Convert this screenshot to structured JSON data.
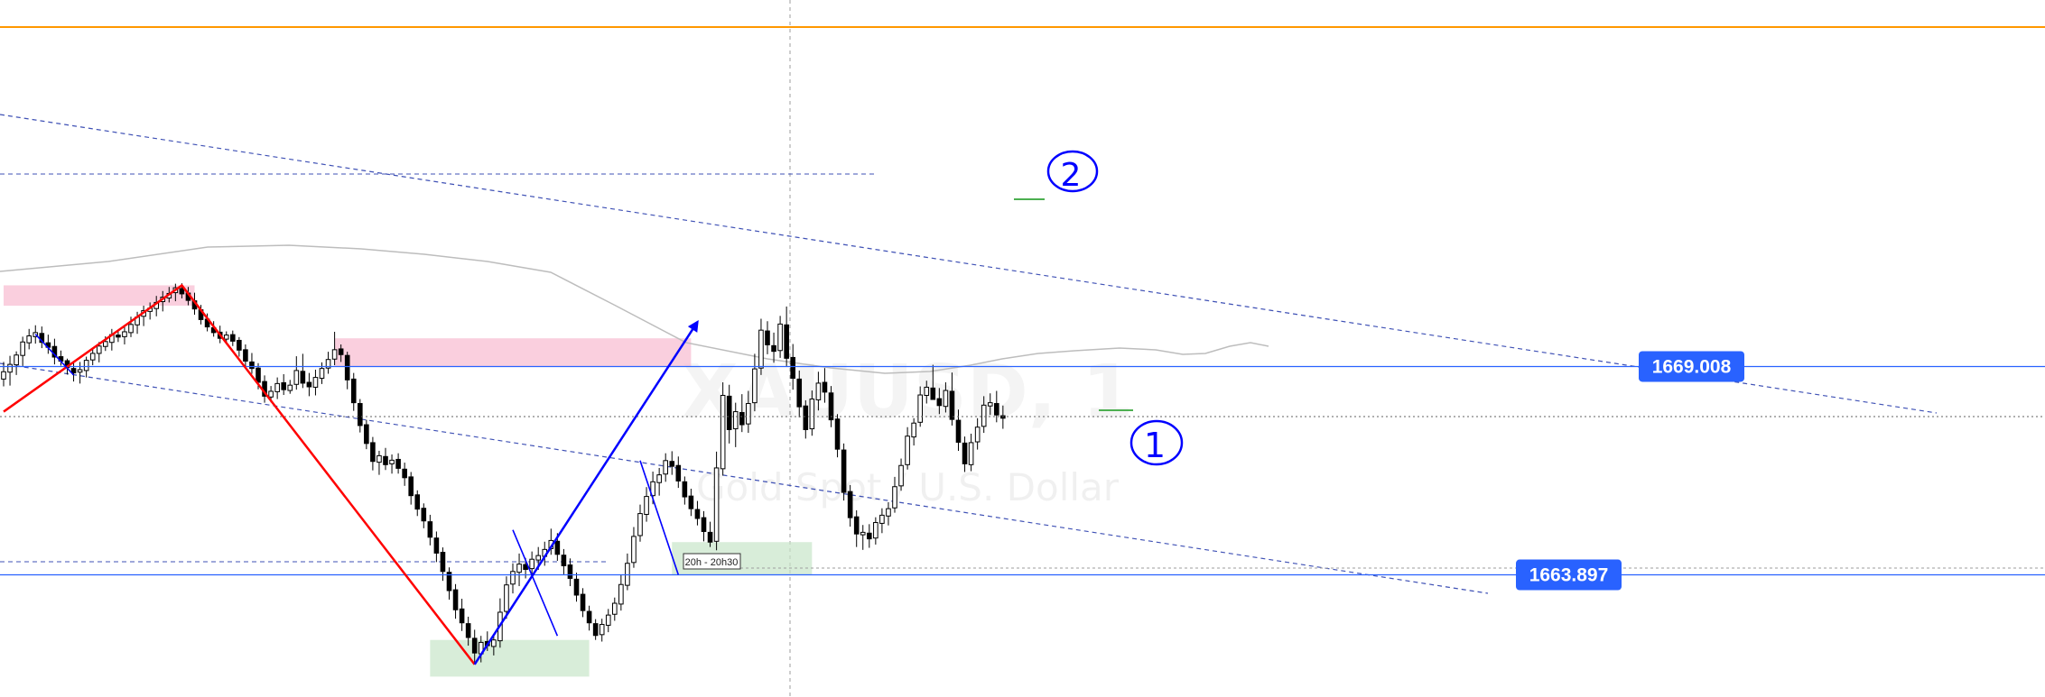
{
  "chart_data": {
    "type": "candlestick",
    "watermark": {
      "symbol": "XAUUSD, 1",
      "description": "Gold Spot / U.S. Dollar"
    },
    "y_range": [
      1660.9,
      1678.0
    ],
    "bar_count": 210,
    "horizontal_levels": [
      {
        "price": 1669.008,
        "label": "1669.008",
        "color": "#2962ff"
      },
      {
        "price": 1663.897,
        "label": "1663.897",
        "color": "#2962ff"
      }
    ],
    "current_price": 1667.78,
    "annotations": [
      {
        "type": "handwritten-label",
        "text": "2",
        "bar": 117,
        "price": 1671.3
      },
      {
        "type": "handwritten-label",
        "text": "1",
        "bar": 123,
        "price": 1663.9
      },
      {
        "type": "time-tag",
        "text": "20h - 20h30",
        "bar": 74,
        "price": 1661.8
      }
    ],
    "zones": [
      {
        "color": "#f8bbd0",
        "from_bar": 0,
        "to_bar": 30,
        "from_price": 1671.0,
        "to_price": 1670.5
      },
      {
        "color": "#f8bbd0",
        "from_bar": 52,
        "to_bar": 108,
        "from_price": 1669.7,
        "to_price": 1669.0
      },
      {
        "color": "#c8e6c9",
        "from_bar": 67,
        "to_bar": 92,
        "from_price": 1662.3,
        "to_price": 1661.4
      },
      {
        "color": "#c8e6c9",
        "from_bar": 105,
        "to_bar": 127,
        "from_price": 1664.7,
        "to_price": 1663.9
      }
    ],
    "trend_lines": [
      {
        "color": "#ff0000",
        "points": [
          [
            0,
            1667.9
          ],
          [
            28,
            1671.0
          ],
          [
            74,
            1661.7
          ]
        ]
      },
      {
        "color": "#0000ff",
        "points": [
          [
            74,
            1661.7
          ],
          [
            109,
            1670.1
          ]
        ],
        "arrow": true
      },
      {
        "color": "#0000ff",
        "points": [
          [
            5,
            1669.8
          ],
          [
            11,
            1668.8
          ]
        ]
      },
      {
        "color": "#0000ff",
        "points": [
          [
            80,
            1665.0
          ],
          [
            87,
            1662.4
          ]
        ]
      },
      {
        "color": "#0000ff",
        "points": [
          [
            100,
            1666.7
          ],
          [
            106,
            1663.9
          ]
        ]
      }
    ],
    "candles": [
      [
        1668.7,
        1669.12,
        1668.52,
        1668.88
      ],
      [
        1668.87,
        1669.27,
        1668.54,
        1669.06
      ],
      [
        1669.05,
        1669.38,
        1668.8,
        1669.29
      ],
      [
        1669.28,
        1669.74,
        1669.02,
        1669.61
      ],
      [
        1669.59,
        1669.93,
        1669.43,
        1669.76
      ],
      [
        1669.74,
        1670.02,
        1669.57,
        1669.84
      ],
      [
        1669.82,
        1669.99,
        1669.46,
        1669.6
      ],
      [
        1669.59,
        1669.79,
        1669.32,
        1669.48
      ],
      [
        1669.5,
        1669.69,
        1669.06,
        1669.24
      ],
      [
        1669.25,
        1669.4,
        1669.03,
        1669.14
      ],
      [
        1669.15,
        1669.2,
        1668.81,
        1668.98
      ],
      [
        1668.96,
        1669.1,
        1668.64,
        1668.85
      ],
      [
        1668.87,
        1669.12,
        1668.59,
        1668.93
      ],
      [
        1668.91,
        1669.25,
        1668.74,
        1669.16
      ],
      [
        1669.17,
        1669.47,
        1669.04,
        1669.33
      ],
      [
        1669.33,
        1669.61,
        1669.11,
        1669.51
      ],
      [
        1669.5,
        1669.75,
        1669.39,
        1669.62
      ],
      [
        1669.6,
        1669.93,
        1669.4,
        1669.79
      ],
      [
        1669.78,
        1669.89,
        1669.61,
        1669.73
      ],
      [
        1669.74,
        1669.98,
        1669.55,
        1669.86
      ],
      [
        1669.84,
        1670.23,
        1669.73,
        1670.04
      ],
      [
        1670.03,
        1670.35,
        1669.81,
        1670.22
      ],
      [
        1670.24,
        1670.5,
        1670.0,
        1670.38
      ],
      [
        1670.36,
        1670.58,
        1670.16,
        1670.44
      ],
      [
        1670.43,
        1670.74,
        1670.24,
        1670.58
      ],
      [
        1670.6,
        1670.86,
        1670.36,
        1670.71
      ],
      [
        1670.69,
        1670.96,
        1670.58,
        1670.8
      ],
      [
        1670.82,
        1671.04,
        1670.61,
        1670.94
      ],
      [
        1670.92,
        1671.05,
        1670.68,
        1670.79
      ],
      [
        1670.81,
        1670.96,
        1670.51,
        1670.63
      ],
      [
        1670.62,
        1670.82,
        1670.28,
        1670.42
      ],
      [
        1670.4,
        1670.52,
        1670.04,
        1670.16
      ],
      [
        1670.17,
        1670.31,
        1669.87,
        1669.98
      ],
      [
        1669.96,
        1670.12,
        1669.74,
        1669.84
      ],
      [
        1669.85,
        1670.01,
        1669.58,
        1669.7
      ],
      [
        1669.68,
        1669.87,
        1669.55,
        1669.78
      ],
      [
        1669.79,
        1669.89,
        1669.51,
        1669.63
      ],
      [
        1669.65,
        1669.73,
        1669.25,
        1669.41
      ],
      [
        1669.42,
        1669.55,
        1668.98,
        1669.14
      ],
      [
        1669.12,
        1669.34,
        1668.83,
        1668.96
      ],
      [
        1668.97,
        1669.09,
        1668.45,
        1668.62
      ],
      [
        1668.64,
        1668.79,
        1668.12,
        1668.28
      ],
      [
        1668.26,
        1668.53,
        1668.13,
        1668.4
      ],
      [
        1668.39,
        1668.74,
        1668.21,
        1668.59
      ],
      [
        1668.61,
        1668.82,
        1668.31,
        1668.44
      ],
      [
        1668.42,
        1668.68,
        1668.34,
        1668.55
      ],
      [
        1668.57,
        1669.26,
        1668.44,
        1668.91
      ],
      [
        1668.89,
        1669.32,
        1668.48,
        1668.6
      ],
      [
        1668.62,
        1668.85,
        1668.28,
        1668.51
      ],
      [
        1668.5,
        1668.93,
        1668.3,
        1668.74
      ],
      [
        1668.72,
        1669.11,
        1668.58,
        1668.96
      ],
      [
        1668.97,
        1669.37,
        1668.83,
        1669.18
      ],
      [
        1669.19,
        1669.86,
        1669.04,
        1669.42
      ],
      [
        1669.44,
        1669.55,
        1669.12,
        1669.3
      ],
      [
        1669.28,
        1669.37,
        1668.45,
        1668.68
      ],
      [
        1668.7,
        1668.85,
        1667.92,
        1668.12
      ],
      [
        1668.1,
        1668.21,
        1667.39,
        1667.56
      ],
      [
        1667.58,
        1667.7,
        1666.98,
        1667.12
      ],
      [
        1667.14,
        1667.28,
        1666.46,
        1666.68
      ],
      [
        1666.66,
        1666.94,
        1666.35,
        1666.82
      ],
      [
        1666.8,
        1667.01,
        1666.47,
        1666.6
      ],
      [
        1666.62,
        1666.85,
        1666.38,
        1666.71
      ],
      [
        1666.73,
        1666.88,
        1666.38,
        1666.51
      ],
      [
        1666.49,
        1666.65,
        1666.08,
        1666.28
      ],
      [
        1666.3,
        1666.42,
        1665.62,
        1665.84
      ],
      [
        1665.86,
        1665.97,
        1665.34,
        1665.51
      ],
      [
        1665.53,
        1665.65,
        1665.04,
        1665.22
      ],
      [
        1665.2,
        1665.37,
        1664.62,
        1664.82
      ],
      [
        1664.8,
        1664.96,
        1664.21,
        1664.43
      ],
      [
        1664.45,
        1664.57,
        1663.75,
        1663.98
      ],
      [
        1663.96,
        1664.08,
        1663.29,
        1663.51
      ],
      [
        1663.53,
        1663.67,
        1662.82,
        1663.04
      ],
      [
        1663.06,
        1663.31,
        1662.52,
        1662.72
      ],
      [
        1662.7,
        1662.87,
        1662.16,
        1662.36
      ],
      [
        1662.34,
        1662.55,
        1661.73,
        1661.98
      ],
      [
        1661.96,
        1662.4,
        1661.75,
        1662.24
      ],
      [
        1662.26,
        1662.51,
        1662.03,
        1662.16
      ],
      [
        1662.14,
        1662.43,
        1661.92,
        1662.3
      ],
      [
        1662.28,
        1663.32,
        1662.11,
        1662.98
      ],
      [
        1663.0,
        1663.86,
        1662.82,
        1663.65
      ],
      [
        1663.67,
        1664.18,
        1663.44,
        1663.98
      ],
      [
        1663.96,
        1664.42,
        1663.62,
        1664.16
      ],
      [
        1664.15,
        1664.31,
        1663.81,
        1664.03
      ],
      [
        1664.05,
        1664.47,
        1663.88,
        1664.28
      ],
      [
        1664.26,
        1664.58,
        1664.02,
        1664.37
      ],
      [
        1664.35,
        1664.71,
        1664.12,
        1664.52
      ],
      [
        1664.54,
        1665.03,
        1664.39,
        1664.74
      ],
      [
        1664.72,
        1664.92,
        1664.24,
        1664.4
      ],
      [
        1664.38,
        1664.53,
        1663.91,
        1664.12
      ],
      [
        1664.14,
        1664.3,
        1663.62,
        1663.81
      ],
      [
        1663.79,
        1663.95,
        1663.24,
        1663.4
      ],
      [
        1663.42,
        1663.57,
        1662.86,
        1663.02
      ],
      [
        1663.0,
        1663.14,
        1662.53,
        1662.72
      ],
      [
        1662.7,
        1662.81,
        1662.3,
        1662.41
      ],
      [
        1662.43,
        1662.82,
        1662.26,
        1662.68
      ],
      [
        1662.66,
        1663.06,
        1662.49,
        1662.91
      ],
      [
        1662.93,
        1663.34,
        1662.77,
        1663.2
      ],
      [
        1663.18,
        1663.89,
        1663.02,
        1663.66
      ],
      [
        1663.64,
        1664.42,
        1663.52,
        1664.18
      ],
      [
        1664.2,
        1665.07,
        1664.07,
        1664.84
      ],
      [
        1664.86,
        1665.62,
        1664.71,
        1665.4
      ],
      [
        1665.38,
        1666.05,
        1665.2,
        1665.82
      ],
      [
        1665.84,
        1666.43,
        1665.63,
        1666.18
      ],
      [
        1666.16,
        1666.52,
        1665.84,
        1666.35
      ],
      [
        1666.37,
        1666.88,
        1666.18,
        1666.7
      ],
      [
        1666.68,
        1666.93,
        1666.35,
        1666.56
      ],
      [
        1666.58,
        1666.8,
        1666.03,
        1666.2
      ],
      [
        1666.18,
        1666.31,
        1665.62,
        1665.81
      ],
      [
        1665.83,
        1666.01,
        1665.34,
        1665.52
      ],
      [
        1665.5,
        1665.71,
        1665.11,
        1665.28
      ],
      [
        1665.3,
        1665.46,
        1664.72,
        1664.96
      ],
      [
        1664.94,
        1665.2,
        1664.58,
        1664.7
      ],
      [
        1664.72,
        1666.92,
        1664.5,
        1666.52
      ],
      [
        1666.5,
        1668.62,
        1666.33,
        1668.3
      ],
      [
        1668.28,
        1668.56,
        1667.12,
        1667.46
      ],
      [
        1667.48,
        1668.12,
        1667.03,
        1667.9
      ],
      [
        1667.88,
        1668.33,
        1667.4,
        1667.58
      ],
      [
        1667.6,
        1668.41,
        1667.38,
        1668.1
      ],
      [
        1668.12,
        1669.32,
        1667.91,
        1668.95
      ],
      [
        1668.97,
        1670.18,
        1668.8,
        1669.9
      ],
      [
        1669.88,
        1670.12,
        1669.31,
        1669.54
      ],
      [
        1669.52,
        1669.84,
        1669.1,
        1669.38
      ],
      [
        1669.4,
        1670.25,
        1669.22,
        1670.05
      ],
      [
        1670.03,
        1670.48,
        1669.02,
        1669.21
      ],
      [
        1669.23,
        1669.56,
        1668.44,
        1668.72
      ],
      [
        1668.7,
        1668.91,
        1667.76,
        1668.02
      ],
      [
        1668.04,
        1668.18,
        1667.24,
        1667.46
      ],
      [
        1667.48,
        1668.42,
        1667.31,
        1668.21
      ],
      [
        1668.19,
        1668.88,
        1667.93,
        1668.6
      ],
      [
        1668.62,
        1668.97,
        1668.12,
        1668.38
      ],
      [
        1668.36,
        1668.53,
        1667.52,
        1667.7
      ],
      [
        1667.72,
        1667.84,
        1666.78,
        1666.98
      ],
      [
        1666.96,
        1667.12,
        1665.72,
        1665.92
      ],
      [
        1665.94,
        1666.1,
        1665.08,
        1665.3
      ],
      [
        1665.32,
        1665.48,
        1664.58,
        1664.9
      ],
      [
        1664.88,
        1665.12,
        1664.51,
        1664.94
      ],
      [
        1664.92,
        1665.14,
        1664.56,
        1664.78
      ],
      [
        1664.8,
        1665.31,
        1664.64,
        1665.18
      ],
      [
        1665.16,
        1665.53,
        1664.92,
        1665.36
      ],
      [
        1665.34,
        1665.68,
        1665.11,
        1665.52
      ],
      [
        1665.54,
        1666.3,
        1665.42,
        1666.06
      ],
      [
        1666.08,
        1666.75,
        1665.96,
        1666.58
      ],
      [
        1666.6,
        1667.52,
        1666.48,
        1667.3
      ],
      [
        1667.28,
        1667.74,
        1667.07,
        1667.62
      ],
      [
        1667.64,
        1668.52,
        1667.53,
        1668.31
      ],
      [
        1668.3,
        1668.66,
        1668.1,
        1668.5
      ],
      [
        1668.48,
        1669.05,
        1668.28,
        1668.2
      ],
      [
        1668.22,
        1668.48,
        1667.84,
        1668.05
      ],
      [
        1668.03,
        1668.62,
        1667.88,
        1668.42
      ],
      [
        1668.4,
        1668.86,
        1667.56,
        1667.71
      ],
      [
        1667.69,
        1667.95,
        1666.94,
        1667.15
      ],
      [
        1667.13,
        1667.29,
        1666.42,
        1666.62
      ],
      [
        1666.6,
        1667.36,
        1666.44,
        1667.14
      ],
      [
        1667.16,
        1667.74,
        1666.97,
        1667.52
      ],
      [
        1667.54,
        1668.28,
        1667.38,
        1668.06
      ],
      [
        1668.04,
        1668.35,
        1667.82,
        1668.12
      ],
      [
        1668.1,
        1668.41,
        1667.64,
        1667.82
      ],
      [
        1667.8,
        1668.05,
        1667.48,
        1667.74
      ]
    ]
  }
}
